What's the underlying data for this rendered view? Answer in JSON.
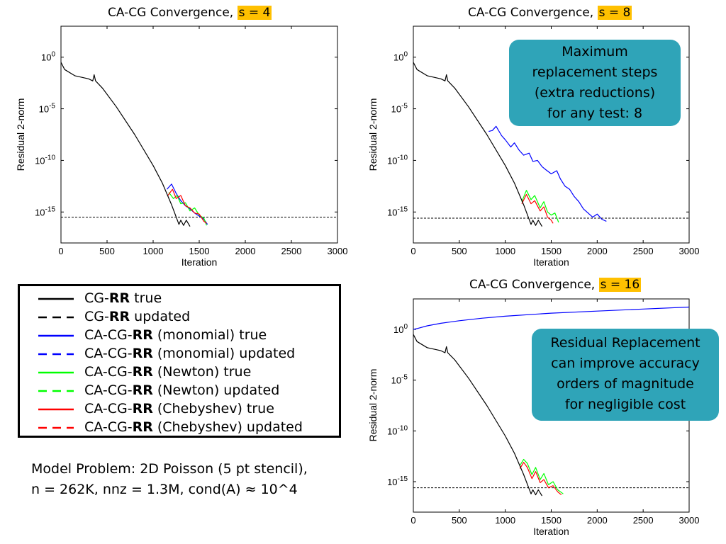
{
  "charts": [
    {
      "title": "CA-CG Convergence, ",
      "title_hl": "s = 4",
      "xlabel": "Iteration",
      "ylabel": "Residual 2-norm"
    },
    {
      "title": "CA-CG Convergence, ",
      "title_hl": "s = 8",
      "xlabel": "Iteration",
      "ylabel": "Residual 2-norm"
    },
    {
      "title": "CA-CG Convergence, ",
      "title_hl": "s = 16",
      "xlabel": "Iteration",
      "ylabel": "Residual 2-norm"
    }
  ],
  "legend": [
    {
      "pre": "CG-",
      "bold": "RR",
      "post": " true",
      "color": "#000000",
      "dashed": false
    },
    {
      "pre": "CG-",
      "bold": "RR",
      "post": " updated",
      "color": "#000000",
      "dashed": true
    },
    {
      "pre": "CA-CG-",
      "bold": "RR",
      "post": " (monomial) true",
      "color": "#0000ff",
      "dashed": false
    },
    {
      "pre": "CA-CG-",
      "bold": "RR",
      "post": " (monomial) updated",
      "color": "#0000ff",
      "dashed": true
    },
    {
      "pre": "CA-CG-",
      "bold": "RR",
      "post": " (Newton) true",
      "color": "#00ff00",
      "dashed": false
    },
    {
      "pre": "CA-CG-",
      "bold": "RR",
      "post": " (Newton) updated",
      "color": "#00ff00",
      "dashed": true
    },
    {
      "pre": "CA-CG-",
      "bold": "RR",
      "post": " (Chebyshev) true",
      "color": "#ff0000",
      "dashed": false
    },
    {
      "pre": "CA-CG-",
      "bold": "RR",
      "post": " (Chebyshev) updated",
      "color": "#ff0000",
      "dashed": true
    }
  ],
  "model_line1": "Model Problem: 2D Poisson (5 pt stencil),",
  "model_line2": "n = 262K, nnz = 1.3M, cond(A) ≈ 10^4",
  "callouts": [
    {
      "lines": [
        "Maximum",
        "replacement steps",
        "(extra reductions)",
        "for any test: 8"
      ]
    },
    {
      "lines": [
        "Residual Replacement",
        "can improve accuracy",
        "orders of magnitude",
        "for negligible cost"
      ]
    }
  ],
  "chart_data": [
    {
      "type": "line",
      "title": "CA-CG Convergence, s = 4",
      "xlabel": "Iteration",
      "ylabel": "Residual 2-norm",
      "y_scale": "log",
      "xlim": [
        0,
        3000
      ],
      "x_ticks": [
        0,
        500,
        1000,
        1500,
        2000,
        2500,
        3000
      ],
      "ylim_exp": [
        -18,
        3
      ],
      "y_ticks_exp": [
        0,
        -5,
        -10,
        -15
      ],
      "reference_exp": -15.5,
      "series": [
        {
          "name": "CG-RR true",
          "color": "#000000",
          "points": [
            [
              0,
              -0.5
            ],
            [
              40,
              -1.2
            ],
            [
              150,
              -1.8
            ],
            [
              300,
              -2.1
            ],
            [
              345,
              -2.3
            ],
            [
              360,
              -1.7
            ],
            [
              375,
              -2.3
            ],
            [
              450,
              -3.0
            ],
            [
              600,
              -4.8
            ],
            [
              800,
              -7.5
            ],
            [
              1000,
              -10.5
            ],
            [
              1100,
              -12.2
            ],
            [
              1200,
              -14.3
            ],
            [
              1280,
              -16.2
            ],
            [
              1300,
              -15.8
            ],
            [
              1330,
              -16.3
            ],
            [
              1360,
              -15.8
            ],
            [
              1400,
              -16.4
            ]
          ]
        },
        {
          "name": "CA-CG-RR (monomial) true",
          "color": "#0000ff",
          "points": [
            [
              1150,
              -12.8
            ],
            [
              1200,
              -12.3
            ],
            [
              1250,
              -13.2
            ],
            [
              1300,
              -13.9
            ],
            [
              1350,
              -14.4
            ],
            [
              1400,
              -14.7
            ],
            [
              1450,
              -15.1
            ],
            [
              1500,
              -15.4
            ],
            [
              1550,
              -15.7
            ],
            [
              1590,
              -16.2
            ]
          ]
        },
        {
          "name": "CA-CG-RR (Newton) true",
          "color": "#00ff00",
          "points": [
            [
              1170,
              -13.1
            ],
            [
              1220,
              -13.7
            ],
            [
              1260,
              -13.4
            ],
            [
              1300,
              -14.2
            ],
            [
              1350,
              -14.1
            ],
            [
              1400,
              -14.9
            ],
            [
              1450,
              -14.6
            ],
            [
              1500,
              -15.3
            ],
            [
              1550,
              -15.6
            ],
            [
              1580,
              -16.3
            ]
          ]
        },
        {
          "name": "CA-CG-RR (Chebyshev) true",
          "color": "#ff0000",
          "points": [
            [
              1160,
              -13.4
            ],
            [
              1210,
              -12.8
            ],
            [
              1250,
              -13.7
            ],
            [
              1300,
              -13.4
            ],
            [
              1350,
              -14.4
            ],
            [
              1400,
              -14.6
            ],
            [
              1450,
              -15.1
            ],
            [
              1500,
              -15.2
            ],
            [
              1550,
              -15.9
            ],
            [
              1580,
              -16.1
            ]
          ]
        }
      ]
    },
    {
      "type": "line",
      "title": "CA-CG Convergence, s = 8",
      "xlabel": "Iteration",
      "ylabel": "Residual 2-norm",
      "y_scale": "log",
      "xlim": [
        0,
        3000
      ],
      "x_ticks": [
        0,
        500,
        1000,
        1500,
        2000,
        2500,
        3000
      ],
      "ylim_exp": [
        -18,
        3
      ],
      "y_ticks_exp": [
        0,
        -5,
        -10,
        -15
      ],
      "reference_exp": -15.6,
      "series": [
        {
          "name": "CG-RR true",
          "color": "#000000",
          "points": [
            [
              0,
              -0.5
            ],
            [
              40,
              -1.2
            ],
            [
              150,
              -1.8
            ],
            [
              300,
              -2.1
            ],
            [
              345,
              -2.3
            ],
            [
              360,
              -1.7
            ],
            [
              375,
              -2.3
            ],
            [
              450,
              -3.0
            ],
            [
              600,
              -4.8
            ],
            [
              800,
              -7.5
            ],
            [
              1000,
              -10.5
            ],
            [
              1100,
              -12.2
            ],
            [
              1200,
              -14.3
            ],
            [
              1280,
              -16.2
            ],
            [
              1300,
              -15.8
            ],
            [
              1330,
              -16.3
            ],
            [
              1360,
              -15.8
            ],
            [
              1400,
              -16.4
            ]
          ]
        },
        {
          "name": "CA-CG-RR (monomial) true",
          "color": "#0000ff",
          "points": [
            [
              820,
              -7.2
            ],
            [
              860,
              -7.1
            ],
            [
              900,
              -6.7
            ],
            [
              960,
              -7.6
            ],
            [
              1000,
              -8.0
            ],
            [
              1060,
              -8.7
            ],
            [
              1100,
              -8.3
            ],
            [
              1150,
              -9.0
            ],
            [
              1200,
              -9.5
            ],
            [
              1260,
              -9.3
            ],
            [
              1300,
              -10.1
            ],
            [
              1350,
              -10.0
            ],
            [
              1400,
              -10.6
            ],
            [
              1440,
              -10.9
            ],
            [
              1500,
              -11.3
            ],
            [
              1560,
              -11.0
            ],
            [
              1600,
              -11.8
            ],
            [
              1650,
              -12.5
            ],
            [
              1700,
              -12.8
            ],
            [
              1750,
              -13.5
            ],
            [
              1800,
              -14.0
            ],
            [
              1850,
              -14.7
            ],
            [
              1900,
              -15.1
            ],
            [
              1950,
              -15.5
            ],
            [
              2000,
              -15.2
            ],
            [
              2050,
              -15.7
            ],
            [
              2100,
              -15.9
            ]
          ]
        },
        {
          "name": "CA-CG-RR (Newton) true",
          "color": "#00ff00",
          "points": [
            [
              1180,
              -14.0
            ],
            [
              1230,
              -12.9
            ],
            [
              1280,
              -13.8
            ],
            [
              1320,
              -13.4
            ],
            [
              1380,
              -14.6
            ],
            [
              1420,
              -14.0
            ],
            [
              1460,
              -15.0
            ],
            [
              1500,
              -15.3
            ],
            [
              1540,
              -15.1
            ],
            [
              1580,
              -16.0
            ]
          ]
        },
        {
          "name": "CA-CG-RR (Chebyshev) true",
          "color": "#ff0000",
          "points": [
            [
              1180,
              -14.2
            ],
            [
              1230,
              -13.3
            ],
            [
              1280,
              -14.2
            ],
            [
              1320,
              -13.9
            ],
            [
              1380,
              -14.9
            ],
            [
              1420,
              -14.5
            ],
            [
              1460,
              -15.5
            ],
            [
              1500,
              -15.8
            ],
            [
              1520,
              -16.1
            ]
          ]
        }
      ]
    },
    {
      "type": "line",
      "title": "CA-CG Convergence, s = 16",
      "xlabel": "Iteration",
      "ylabel": "Residual 2-norm",
      "y_scale": "log",
      "xlim": [
        0,
        3000
      ],
      "x_ticks": [
        0,
        500,
        1000,
        1500,
        2000,
        2500,
        3000
      ],
      "ylim_exp": [
        -18,
        3
      ],
      "y_ticks_exp": [
        0,
        -5,
        -10,
        -15
      ],
      "reference_exp": -15.6,
      "series": [
        {
          "name": "CG-RR true",
          "color": "#000000",
          "points": [
            [
              0,
              -0.5
            ],
            [
              40,
              -1.2
            ],
            [
              150,
              -1.8
            ],
            [
              300,
              -2.1
            ],
            [
              345,
              -2.3
            ],
            [
              360,
              -1.7
            ],
            [
              375,
              -2.3
            ],
            [
              450,
              -3.0
            ],
            [
              600,
              -4.8
            ],
            [
              800,
              -7.5
            ],
            [
              1000,
              -10.5
            ],
            [
              1100,
              -12.2
            ],
            [
              1200,
              -14.3
            ],
            [
              1280,
              -16.2
            ],
            [
              1300,
              -15.8
            ],
            [
              1330,
              -16.3
            ],
            [
              1360,
              -15.8
            ],
            [
              1400,
              -16.4
            ]
          ]
        },
        {
          "name": "CA-CG-RR (monomial) true",
          "color": "#0000ff",
          "points": [
            [
              0,
              0.0
            ],
            [
              50,
              0.1
            ],
            [
              150,
              0.35
            ],
            [
              300,
              0.6
            ],
            [
              500,
              0.85
            ],
            [
              750,
              1.1
            ],
            [
              1000,
              1.3
            ],
            [
              1500,
              1.6
            ],
            [
              2000,
              1.8
            ],
            [
              2500,
              2.0
            ],
            [
              3000,
              2.2
            ]
          ]
        },
        {
          "name": "CA-CG-RR (Newton) true",
          "color": "#00ff00",
          "points": [
            [
              1160,
              -13.4
            ],
            [
              1200,
              -12.8
            ],
            [
              1240,
              -13.2
            ],
            [
              1290,
              -14.3
            ],
            [
              1330,
              -13.6
            ],
            [
              1380,
              -14.8
            ],
            [
              1420,
              -14.2
            ],
            [
              1470,
              -15.3
            ],
            [
              1520,
              -15.0
            ],
            [
              1570,
              -15.8
            ],
            [
              1600,
              -16.0
            ],
            [
              1630,
              -16.2
            ]
          ]
        },
        {
          "name": "CA-CG-RR (Chebyshev) true",
          "color": "#ff0000",
          "points": [
            [
              1160,
              -13.7
            ],
            [
              1200,
              -13.1
            ],
            [
              1240,
              -13.6
            ],
            [
              1290,
              -14.7
            ],
            [
              1330,
              -14.0
            ],
            [
              1380,
              -15.1
            ],
            [
              1420,
              -14.8
            ],
            [
              1470,
              -15.6
            ],
            [
              1520,
              -15.4
            ],
            [
              1570,
              -16.0
            ],
            [
              1610,
              -16.3
            ]
          ]
        }
      ]
    }
  ]
}
